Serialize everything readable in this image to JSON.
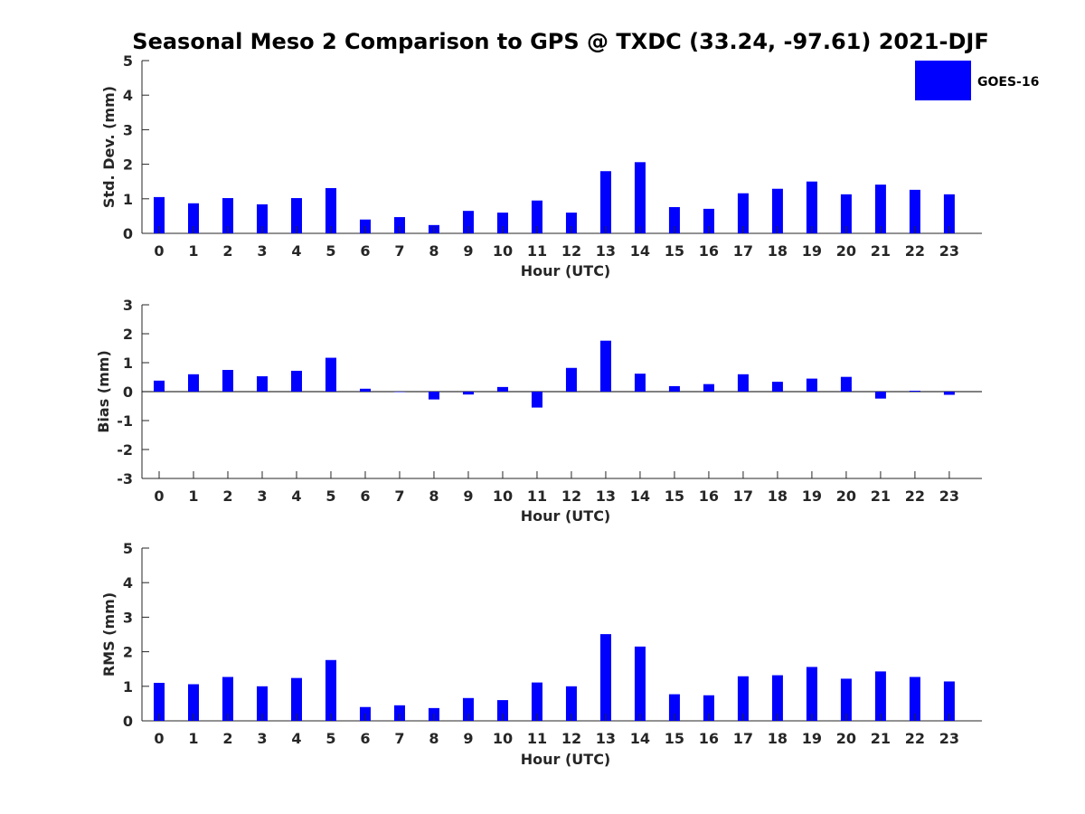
{
  "figure": {
    "title": "Seasonal Meso 2 Comparison to GPS @ TXDC (33.24, -97.61) 2021-DJF",
    "legend": {
      "label": "GOES-16",
      "color": "#0000ff",
      "placement": "top-right"
    }
  },
  "chart_data": [
    {
      "type": "bar",
      "categories": [
        "0",
        "1",
        "2",
        "3",
        "4",
        "5",
        "6",
        "7",
        "8",
        "9",
        "10",
        "11",
        "12",
        "13",
        "14",
        "15",
        "16",
        "17",
        "18",
        "19",
        "20",
        "21",
        "22",
        "23"
      ],
      "series": [
        {
          "name": "GOES-16",
          "color": "#0000ff",
          "values": [
            1.05,
            0.87,
            1.02,
            0.84,
            1.02,
            1.31,
            0.4,
            0.47,
            0.24,
            0.65,
            0.6,
            0.95,
            0.6,
            1.8,
            2.06,
            0.76,
            0.71,
            1.16,
            1.29,
            1.5,
            1.13,
            1.41,
            1.26,
            1.13
          ]
        }
      ],
      "xlabel": "Hour (UTC)",
      "ylabel": "Std. Dev. (mm)",
      "ylim": [
        0,
        5
      ],
      "yticks": [
        "0",
        "1",
        "2",
        "3",
        "4",
        "5"
      ],
      "grid": false
    },
    {
      "type": "bar",
      "categories": [
        "0",
        "1",
        "2",
        "3",
        "4",
        "5",
        "6",
        "7",
        "8",
        "9",
        "10",
        "11",
        "12",
        "13",
        "14",
        "15",
        "16",
        "17",
        "18",
        "19",
        "20",
        "21",
        "22",
        "23"
      ],
      "series": [
        {
          "name": "GOES-16",
          "color": "#0000ff",
          "values": [
            0.38,
            0.6,
            0.75,
            0.53,
            0.72,
            1.17,
            0.1,
            0.0,
            -0.27,
            -0.1,
            0.16,
            -0.55,
            0.82,
            1.76,
            0.62,
            0.19,
            0.26,
            0.6,
            0.34,
            0.45,
            0.51,
            -0.24,
            0.03,
            -0.11
          ]
        }
      ],
      "xlabel": "Hour (UTC)",
      "ylabel": "Bias (mm)",
      "ylim": [
        -3,
        3
      ],
      "yticks": [
        "-3",
        "-2",
        "-1",
        "0",
        "1",
        "2",
        "3"
      ],
      "grid": false
    },
    {
      "type": "bar",
      "categories": [
        "0",
        "1",
        "2",
        "3",
        "4",
        "5",
        "6",
        "7",
        "8",
        "9",
        "10",
        "11",
        "12",
        "13",
        "14",
        "15",
        "16",
        "17",
        "18",
        "19",
        "20",
        "21",
        "22",
        "23"
      ],
      "series": [
        {
          "name": "GOES-16",
          "color": "#0000ff",
          "values": [
            1.1,
            1.06,
            1.27,
            1.0,
            1.24,
            1.76,
            0.4,
            0.45,
            0.37,
            0.66,
            0.6,
            1.11,
            1.0,
            2.51,
            2.15,
            0.77,
            0.74,
            1.29,
            1.32,
            1.56,
            1.22,
            1.43,
            1.27,
            1.14
          ]
        }
      ],
      "xlabel": "Hour (UTC)",
      "ylabel": "RMS (mm)",
      "ylim": [
        0,
        5
      ],
      "yticks": [
        "0",
        "1",
        "2",
        "3",
        "4",
        "5"
      ],
      "grid": false
    }
  ]
}
